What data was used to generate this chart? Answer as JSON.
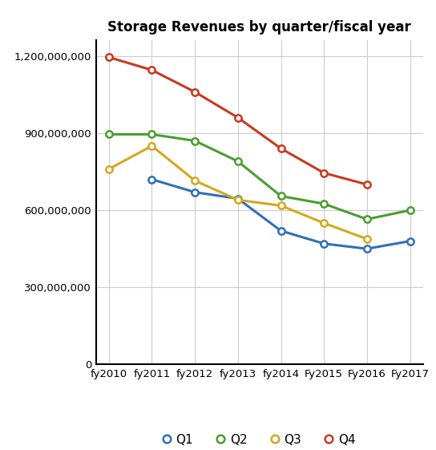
{
  "title": "Storage Revenues by quarter/fiscal year",
  "x_labels": [
    "fy2010",
    "fy2011",
    "fy2012",
    "fy2013",
    "fy2014",
    "Fy2015",
    "Fy2016",
    "Fy2017"
  ],
  "series": {
    "Q1": {
      "values": [
        null,
        720000000,
        670000000,
        645000000,
        520000000,
        470000000,
        450000000,
        480000000
      ],
      "color": "#3070b8",
      "marker": "o"
    },
    "Q2": {
      "values": [
        895000000,
        895000000,
        870000000,
        790000000,
        655000000,
        625000000,
        565000000,
        600000000
      ],
      "color": "#4a9e2f",
      "marker": "o"
    },
    "Q3": {
      "values": [
        760000000,
        850000000,
        715000000,
        640000000,
        618000000,
        550000000,
        488000000,
        null
      ],
      "color": "#d4a820",
      "marker": "o"
    },
    "Q4": {
      "values": [
        1195000000,
        1145000000,
        1060000000,
        960000000,
        840000000,
        745000000,
        700000000,
        null
      ],
      "color": "#c93a20",
      "marker": "o"
    }
  },
  "ylim": [
    0,
    1260000000
  ],
  "yticks": [
    0,
    300000000,
    600000000,
    900000000,
    1200000000
  ],
  "ytick_labels": [
    "0",
    "300,000,000",
    "600,000,000",
    "900,000,000",
    "1,200,000,000"
  ],
  "background_color": "#ffffff",
  "grid_color": "#cccccc",
  "legend_order": [
    "Q1",
    "Q2",
    "Q3",
    "Q4"
  ],
  "marker_facecolor": "#ffffff",
  "marker_size": 6,
  "line_width": 2.2,
  "title_fontsize": 12,
  "tick_fontsize": 9.5,
  "legend_fontsize": 11
}
